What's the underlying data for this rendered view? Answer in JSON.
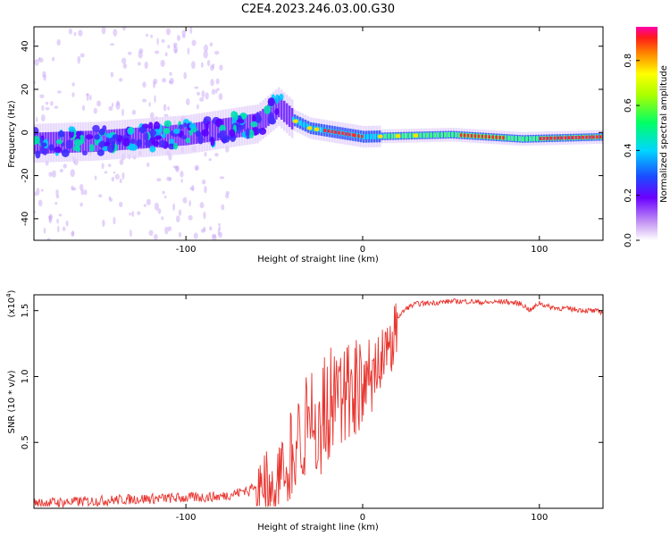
{
  "title": "C2E4.2023.246.03.00.G30",
  "colorbar": {
    "label": "Normalized spectral amplitude",
    "ticks": [
      "0.0",
      "0.2",
      "0.4",
      "0.6",
      "0.8"
    ]
  },
  "chart_data": [
    {
      "type": "heatmap",
      "xlabel": "Height of straight line (km)",
      "ylabel": "Frequency (Hz)",
      "xlim": [
        -186,
        136
      ],
      "ylim": [
        -50,
        49
      ],
      "xticks": [
        "-100",
        "0",
        "100"
      ],
      "yticks": [
        "40",
        "20",
        "0",
        "-20",
        "-40"
      ],
      "ridge_description_points": [
        {
          "x": -186,
          "freq": -5
        },
        {
          "x": -150,
          "freq": -4
        },
        {
          "x": -100,
          "freq": -1
        },
        {
          "x": -60,
          "freq": 4
        },
        {
          "x": -48,
          "freq": 12
        },
        {
          "x": -40,
          "freq": 6
        },
        {
          "x": -30,
          "freq": 2
        },
        {
          "x": -15,
          "freq": 0
        },
        {
          "x": 0,
          "freq": -2
        },
        {
          "x": 50,
          "freq": -1
        },
        {
          "x": 90,
          "freq": -3
        },
        {
          "x": 136,
          "freq": -2
        }
      ]
    },
    {
      "type": "line",
      "xlabel": "Height of straight line (km)",
      "ylabel": "SNR (10 * v/v)",
      "scale_label": "(x10",
      "scale_exp": "4",
      "xlim": [
        -186,
        136
      ],
      "ylim": [
        0,
        1.62
      ],
      "xticks": [
        "-100",
        "0",
        "100"
      ],
      "yticks": [
        "0.5",
        "1.0",
        "1.5"
      ],
      "series": [
        {
          "name": "SNR",
          "color": "#e8342e",
          "x": [
            -186,
            -160,
            -130,
            -100,
            -80,
            -70,
            -60,
            -55,
            -50,
            -45,
            -40,
            -35,
            -30,
            -25,
            -20,
            -15,
            -10,
            -5,
            0,
            5,
            10,
            15,
            20,
            25,
            30,
            40,
            50,
            60,
            70,
            80,
            90,
            95,
            100,
            105,
            110,
            120,
            136
          ],
          "values": [
            0.04,
            0.05,
            0.07,
            0.08,
            0.09,
            0.12,
            0.18,
            0.3,
            0.35,
            0.45,
            0.6,
            0.75,
            0.9,
            0.85,
            0.95,
            1.0,
            1.05,
            1.1,
            1.1,
            1.15,
            1.2,
            1.35,
            1.45,
            1.52,
            1.55,
            1.56,
            1.57,
            1.57,
            1.56,
            1.57,
            1.55,
            1.5,
            1.56,
            1.53,
            1.52,
            1.51,
            1.49
          ]
        }
      ]
    }
  ]
}
